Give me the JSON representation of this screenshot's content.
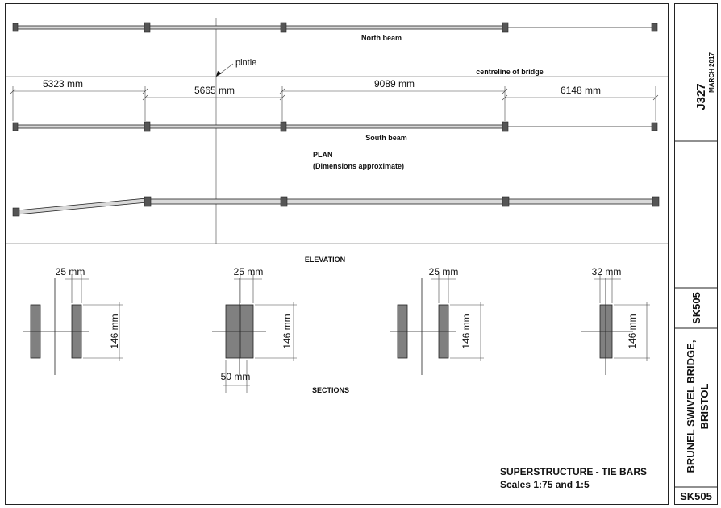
{
  "title_block": {
    "project_code": "J327",
    "date": "MARCH 2017",
    "sheet_ref": "SK505",
    "project_name_line1": "BRUNEL SWIVEL BRIDGE,",
    "project_name_line2": "BRISTOL",
    "sheet_ref_bottom": "SK505"
  },
  "plan": {
    "north_beam_label": "North beam",
    "south_beam_label": "South beam",
    "pintle_label": "pintle",
    "centreline_label": "centreline of bridge",
    "heading": "PLAN",
    "subheading": "(Dimensions approximate)",
    "dimensions": [
      "5323 mm",
      "5665 mm",
      "9089 mm",
      "6148 mm"
    ]
  },
  "elevation": {
    "heading": "ELEVATION"
  },
  "sections": {
    "heading": "SECTIONS",
    "items": [
      {
        "width_label": "25 mm",
        "height_label": "146 mm"
      },
      {
        "width_label": "25 mm",
        "height_label": "146 mm",
        "overall_label": "50 mm"
      },
      {
        "width_label": "25 mm",
        "height_label": "146 mm"
      },
      {
        "width_label": "32 mm",
        "height_label": "146 mm"
      }
    ]
  },
  "caption": {
    "line1": "SUPERSTRUCTURE - TIE BARS",
    "line2": "Scales 1:75 and 1:5"
  }
}
